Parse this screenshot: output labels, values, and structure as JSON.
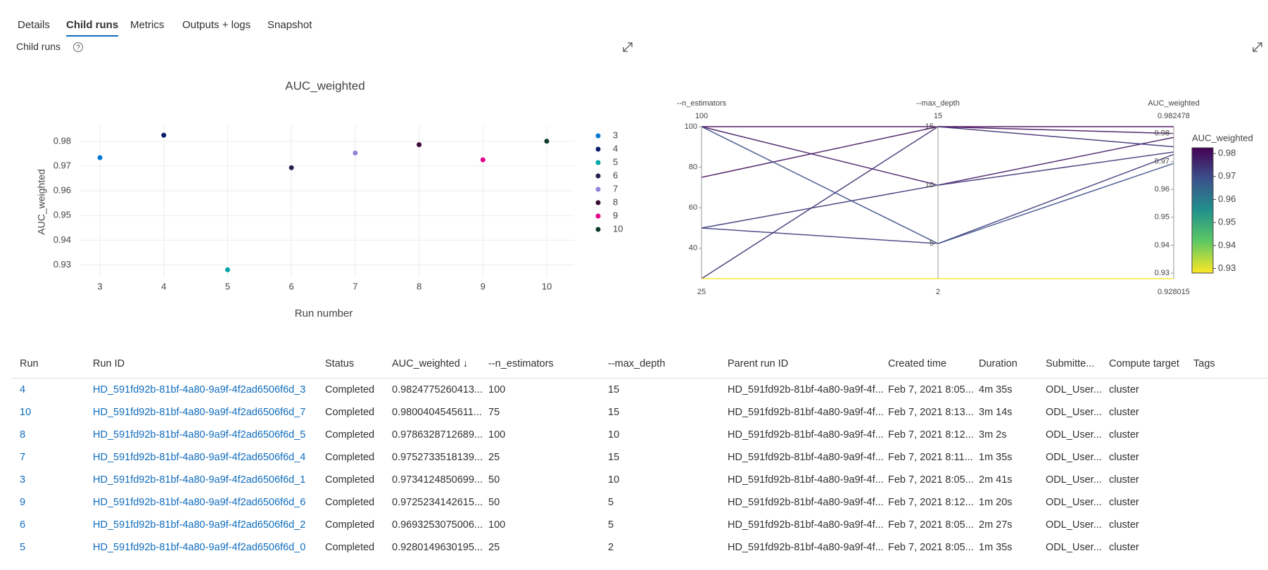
{
  "tabs": [
    "Details",
    "Child runs",
    "Metrics",
    "Outputs + logs",
    "Snapshot"
  ],
  "section_title": "Child runs",
  "help_icon": "?",
  "chart_data": [
    {
      "type": "scatter",
      "title": "AUC_weighted",
      "x_label": "Run number",
      "y_label": "AUC_weighted",
      "xlim": [
        2.68,
        10.43
      ],
      "xticks": [
        3,
        4,
        5,
        6,
        7,
        8,
        9,
        10
      ],
      "ylim": [
        0.925,
        0.9865
      ],
      "yticks": [
        0.93,
        0.94,
        0.95,
        0.96,
        0.97,
        0.98
      ],
      "grid": true,
      "series": [
        {
          "name": "3",
          "color": "#0078d4",
          "x": [
            3
          ],
          "values": [
            0.9734124850699
          ]
        },
        {
          "name": "4",
          "color": "#0b1f6b",
          "x": [
            4
          ],
          "values": [
            0.9824775260413
          ]
        },
        {
          "name": "5",
          "color": "#00a5a5",
          "x": [
            5
          ],
          "values": [
            0.9280149630195
          ]
        },
        {
          "name": "6",
          "color": "#2a1f4d",
          "x": [
            6
          ],
          "values": [
            0.9693253075006
          ]
        },
        {
          "name": "7",
          "color": "#8f83d8",
          "x": [
            7
          ],
          "values": [
            0.9752733518139
          ]
        },
        {
          "name": "8",
          "color": "#3d0c35",
          "x": [
            8
          ],
          "values": [
            0.9786328712689
          ]
        },
        {
          "name": "9",
          "color": "#e3008c",
          "x": [
            9
          ],
          "values": [
            0.9725234142615
          ]
        },
        {
          "name": "10",
          "color": "#0c3b2e",
          "x": [
            10
          ],
          "values": [
            0.9800404545611
          ]
        }
      ]
    },
    {
      "type": "parcoords",
      "dimensions": [
        {
          "label": "--n_estimators",
          "range": [
            25,
            100
          ],
          "ticks": [
            40,
            60,
            80,
            100
          ],
          "values": [
            100,
            75,
            100,
            25,
            50,
            50,
            100,
            25
          ]
        },
        {
          "label": "--max_depth",
          "range": [
            2,
            15
          ],
          "ticks": [
            5,
            10,
            15
          ],
          "values": [
            15,
            15,
            10,
            15,
            10,
            5,
            5,
            2
          ]
        },
        {
          "label": "AUC_weighted",
          "range": [
            0.928015,
            0.982478
          ],
          "ticks": [
            0.93,
            0.94,
            0.95,
            0.96,
            0.97,
            0.98
          ],
          "values": [
            0.9824775260413,
            0.9800404545611,
            0.9786328712689,
            0.9752733518139,
            0.9734124850699,
            0.9725234142615,
            0.9693253075006,
            0.9280149630195
          ]
        }
      ],
      "colorscale": [
        "#fde725",
        "#5ec962",
        "#21918c",
        "#3b528b",
        "#440154"
      ],
      "colorbar": {
        "title": "AUC_weighted",
        "ticks": [
          0.93,
          0.94,
          0.95,
          0.96,
          0.97,
          0.98
        ]
      }
    }
  ],
  "table": {
    "columns": [
      "Run",
      "Run ID",
      "Status",
      "AUC_weighted ↓",
      "--n_estimators",
      "--max_depth",
      "Parent run ID",
      "Created time",
      "Duration",
      "Submitte...",
      "Compute target",
      "Tags"
    ],
    "rows": [
      [
        "4",
        "HD_591fd92b-81bf-4a80-9a9f-4f2ad6506f6d_3",
        "Completed",
        "0.9824775260413...",
        "100",
        "15",
        "HD_591fd92b-81bf-4a80-9a9f-4f...",
        "Feb 7, 2021 8:05...",
        "4m 35s",
        "ODL_User...",
        "cluster"
      ],
      [
        "10",
        "HD_591fd92b-81bf-4a80-9a9f-4f2ad6506f6d_7",
        "Completed",
        "0.9800404545611...",
        "75",
        "15",
        "HD_591fd92b-81bf-4a80-9a9f-4f...",
        "Feb 7, 2021 8:13...",
        "3m 14s",
        "ODL_User...",
        "cluster"
      ],
      [
        "8",
        "HD_591fd92b-81bf-4a80-9a9f-4f2ad6506f6d_5",
        "Completed",
        "0.9786328712689...",
        "100",
        "10",
        "HD_591fd92b-81bf-4a80-9a9f-4f...",
        "Feb 7, 2021 8:12...",
        "3m 2s",
        "ODL_User...",
        "cluster"
      ],
      [
        "7",
        "HD_591fd92b-81bf-4a80-9a9f-4f2ad6506f6d_4",
        "Completed",
        "0.9752733518139...",
        "25",
        "15",
        "HD_591fd92b-81bf-4a80-9a9f-4f...",
        "Feb 7, 2021 8:11...",
        "1m 35s",
        "ODL_User...",
        "cluster"
      ],
      [
        "3",
        "HD_591fd92b-81bf-4a80-9a9f-4f2ad6506f6d_1",
        "Completed",
        "0.9734124850699...",
        "50",
        "10",
        "HD_591fd92b-81bf-4a80-9a9f-4f...",
        "Feb 7, 2021 8:05...",
        "2m 41s",
        "ODL_User...",
        "cluster"
      ],
      [
        "9",
        "HD_591fd92b-81bf-4a80-9a9f-4f2ad6506f6d_6",
        "Completed",
        "0.9725234142615...",
        "50",
        "5",
        "HD_591fd92b-81bf-4a80-9a9f-4f...",
        "Feb 7, 2021 8:12...",
        "1m 20s",
        "ODL_User...",
        "cluster"
      ],
      [
        "6",
        "HD_591fd92b-81bf-4a80-9a9f-4f2ad6506f6d_2",
        "Completed",
        "0.9693253075006...",
        "100",
        "5",
        "HD_591fd92b-81bf-4a80-9a9f-4f...",
        "Feb 7, 2021 8:05...",
        "2m 27s",
        "ODL_User...",
        "cluster"
      ],
      [
        "5",
        "HD_591fd92b-81bf-4a80-9a9f-4f2ad6506f6d_0",
        "Completed",
        "0.9280149630195...",
        "25",
        "2",
        "HD_591fd92b-81bf-4a80-9a9f-4f...",
        "Feb 7, 2021 8:05...",
        "1m 35s",
        "ODL_User...",
        "cluster"
      ]
    ]
  }
}
